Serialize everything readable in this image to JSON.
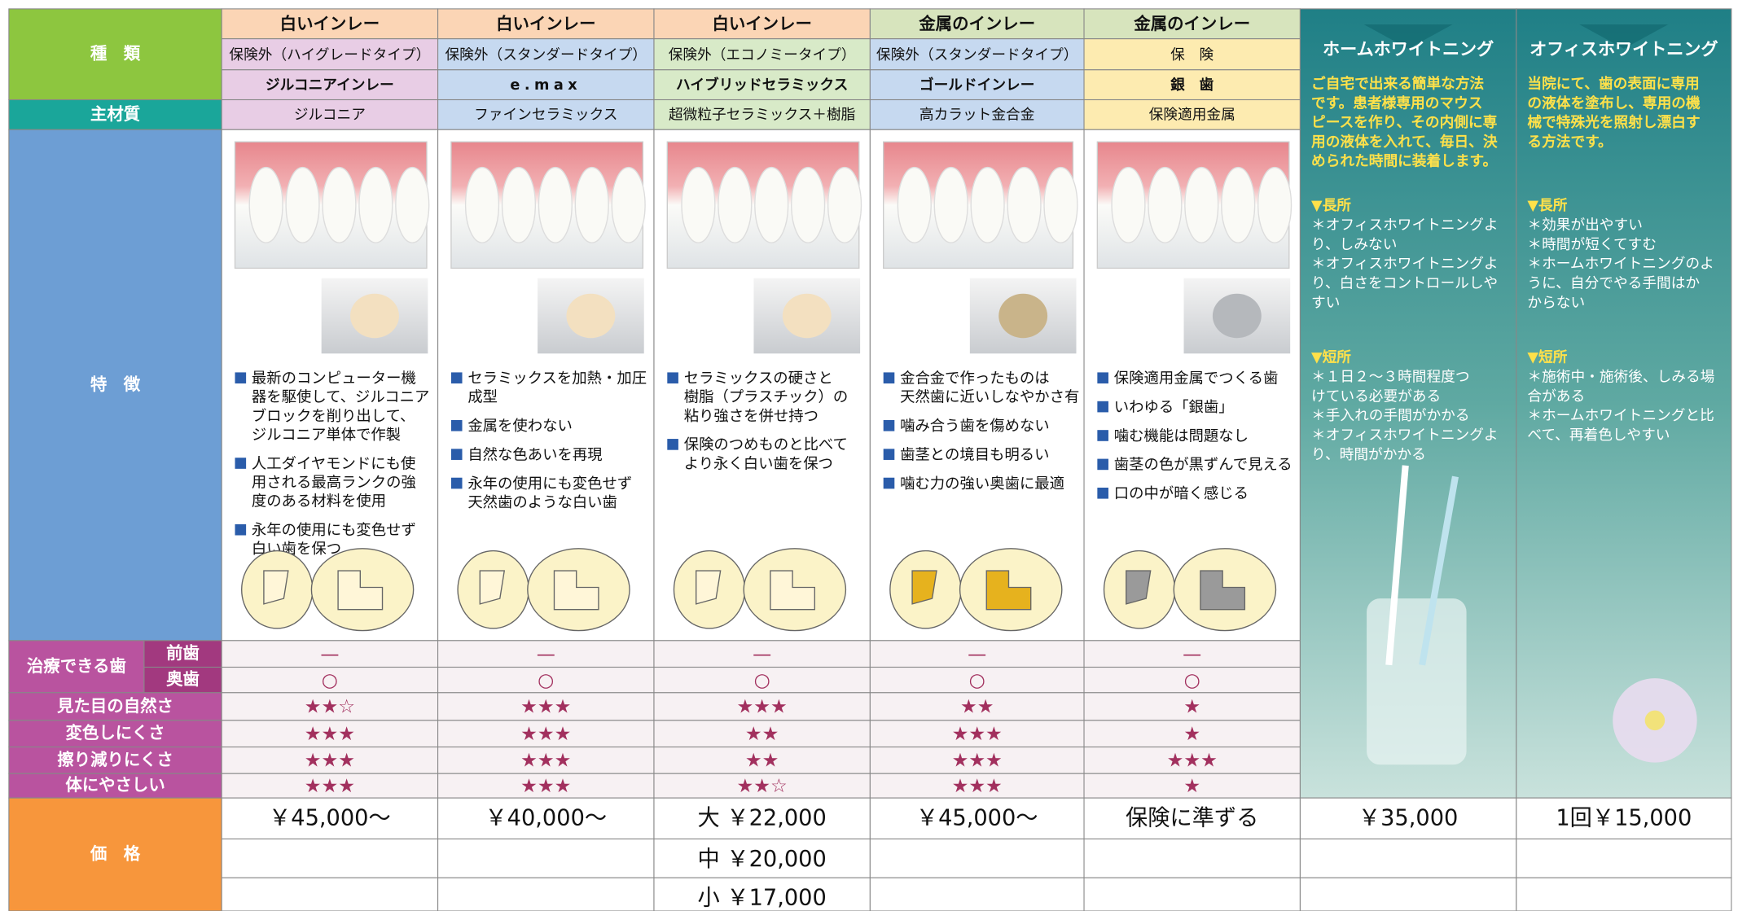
{
  "row_labels": {
    "type": "種　類",
    "material": "主材質",
    "features": "特　徴",
    "treatable": "治療できる歯",
    "front": "前歯",
    "back": "奥歯",
    "natural": "見た目の自然さ",
    "discolor": "変色しにくさ",
    "wear": "擦り減りにくさ",
    "body": "体にやさしい",
    "price": "価　格"
  },
  "columns": [
    {
      "category": "白いインレー",
      "insurance": "保険外（ハイグレードタイプ）",
      "name": "ジルコニアインレー",
      "material": "ジルコニア",
      "features": [
        [
          "最新のコンピューター機",
          "器を駆使して、ジルコニア",
          "ブロックを削り出して、",
          "ジルコニア単体で作製"
        ],
        [
          "人工ダイヤモンドにも使",
          "用される最高ランクの強",
          "度のある材料を使用"
        ],
        [
          "永年の使用にも変色せず",
          "白い歯を保つ"
        ]
      ],
      "front": "—",
      "back": "○",
      "natural": "★★☆",
      "discolor": "★★★",
      "wear": "★★★",
      "body": "★★★",
      "price": [
        "￥45,000〜"
      ]
    },
    {
      "category": "白いインレー",
      "insurance": "保険外（スタンダードタイプ）",
      "name": "e.max",
      "material": "ファインセラミックス",
      "features": [
        [
          "セラミックスを加熱・加圧",
          "成型"
        ],
        [
          "金属を使わない"
        ],
        [
          "自然な色あいを再現"
        ],
        [
          "永年の使用にも変色せず",
          "天然歯のような白い歯"
        ]
      ],
      "front": "—",
      "back": "○",
      "natural": "★★★",
      "discolor": "★★★",
      "wear": "★★★",
      "body": "★★★",
      "price": [
        "￥40,000〜"
      ]
    },
    {
      "category": "白いインレー",
      "insurance": "保険外（エコノミータイプ）",
      "name": "ハイブリッドセラミックス",
      "material": "超微粒子セラミックス＋樹脂",
      "features": [
        [
          "セラミックスの硬さと",
          "樹脂（プラスチック）の",
          "粘り強さを併せ持つ"
        ],
        [
          "保険のつめものと比べて",
          "より永く白い歯を保つ"
        ]
      ],
      "front": "—",
      "back": "○",
      "natural": "★★★",
      "discolor": "★★",
      "wear": "★★",
      "body": "★★☆",
      "price": [
        "大 ￥22,000",
        "中 ￥20,000",
        "小 ￥17,000"
      ]
    },
    {
      "category": "金属のインレー",
      "insurance": "保険外（スタンダードタイプ）",
      "name": "ゴールドインレー",
      "material": "高カラット金合金",
      "features": [
        [
          "金合金で作ったものは",
          "天然歯に近いしなやかさ有"
        ],
        [
          "噛み合う歯を傷めない"
        ],
        [
          "歯茎との境目も明るい"
        ],
        [
          "噛む力の強い奥歯に最適"
        ]
      ],
      "front": "—",
      "back": "○",
      "natural": "★★",
      "discolor": "★★★",
      "wear": "★★★",
      "body": "★★★",
      "price": [
        "￥45,000〜"
      ]
    },
    {
      "category": "金属のインレー",
      "insurance": "保　険",
      "name": "銀　歯",
      "material": "保険適用金属",
      "features": [
        [
          "保険適用金属でつくる歯"
        ],
        [
          "いわゆる「銀歯」"
        ],
        [
          "噛む機能は問題なし"
        ],
        [
          "歯茎の色が黒ずんで見える"
        ],
        [
          "口の中が暗く感じる"
        ]
      ],
      "front": "—",
      "back": "○",
      "natural": "★",
      "discolor": "★",
      "wear": "★★★",
      "body": "★",
      "price": [
        "保険に準ずる"
      ]
    }
  ],
  "whitening": [
    {
      "title": "ホームホワイトニング",
      "description": [
        "ご自宅で出来る簡単な方法",
        "です。患者様専用のマウス",
        "ピースを作り、その内側に専",
        "用の液体を入れて、毎日、決",
        "められた時間に装着します。"
      ],
      "merits_heading": "▼長所",
      "merits": [
        "＊オフィスホワイトニングよ",
        "り、しみない",
        "＊オフィスホワイトニングよ",
        "り、白さをコントロールしや",
        "すい"
      ],
      "demerits_heading": "▼短所",
      "demerits": [
        "＊１日２～３時間程度つ",
        "けている必要がある",
        "＊手入れの手間がかかる",
        "＊オフィスホワイトニングよ",
        "り、時間がかかる"
      ],
      "price": "￥35,000"
    },
    {
      "title": "オフィスホワイトニング",
      "description": [
        "当院にて、歯の表面に専用",
        "の液体を塗布し、専用の機",
        "械で特殊光を照射し漂白す",
        "る方法です。"
      ],
      "merits_heading": "▼長所",
      "merits": [
        "＊効果が出やすい",
        "＊時間が短くてすむ",
        "＊ホームホワイトニングのよ",
        "うに、自分でやる手間はか",
        "からない"
      ],
      "demerits_heading": "▼短所",
      "demerits": [
        "＊施術中・施術後、しみる場",
        "合がある",
        "＊ホームホワイトニングと比",
        "べて、再着色しやすい"
      ],
      "price": "1回￥15,000"
    }
  ]
}
